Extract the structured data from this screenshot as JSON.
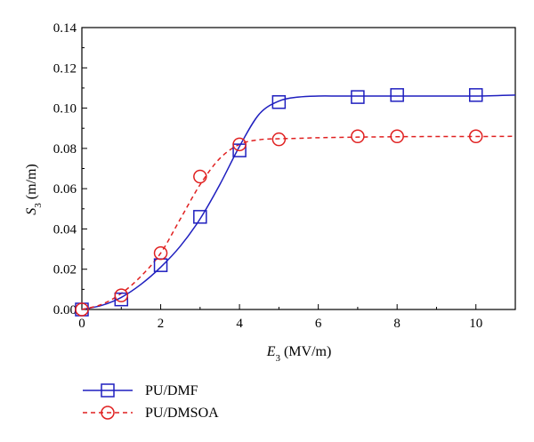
{
  "chart_data": {
    "type": "line",
    "title": "",
    "xlabel": {
      "symbol": "E",
      "subscript": "3",
      "unit": " (MV/m)"
    },
    "ylabel": {
      "symbol": "S",
      "subscript": "3",
      "unit": " (m/m)"
    },
    "xlim": [
      0,
      11
    ],
    "ylim": [
      0,
      0.14
    ],
    "xticks": [
      0,
      2,
      4,
      6,
      8,
      10
    ],
    "yticks": [
      0.0,
      0.02,
      0.04,
      0.06,
      0.08,
      0.1,
      0.12,
      0.14
    ],
    "ytick_labels": [
      "0.00",
      "0.02",
      "0.04",
      "0.06",
      "0.08",
      "0.10",
      "0.12",
      "0.14"
    ],
    "grid": false,
    "legend_position": "bottom-left, below plot",
    "series": [
      {
        "name": "PU/DMF",
        "color": "#1f1fbf",
        "marker": "square",
        "line_style": "solid",
        "x": [
          0,
          1,
          2,
          3,
          4,
          5,
          7,
          8,
          10
        ],
        "y": [
          0.0,
          0.005,
          0.022,
          0.046,
          0.079,
          0.103,
          0.1055,
          0.1065,
          0.1065
        ],
        "fit_curve": {
          "x": [
            0,
            0.5,
            1,
            1.5,
            2,
            2.5,
            3,
            3.5,
            4,
            4.5,
            5,
            5.5,
            6,
            6.5,
            7,
            8,
            9,
            10,
            11
          ],
          "y": [
            0.0,
            0.002,
            0.006,
            0.0125,
            0.021,
            0.0315,
            0.045,
            0.062,
            0.081,
            0.097,
            0.1035,
            0.1055,
            0.106,
            0.106,
            0.106,
            0.106,
            0.106,
            0.106,
            0.1065
          ]
        }
      },
      {
        "name": "PU/DMSOA",
        "color": "#e02020",
        "marker": "circle",
        "line_style": "dashed",
        "x": [
          0,
          1,
          2,
          3,
          4,
          5,
          7,
          8,
          10
        ],
        "y": [
          0.0,
          0.007,
          0.028,
          0.066,
          0.082,
          0.0845,
          0.086,
          0.086,
          0.086
        ],
        "fit_curve": {
          "x": [
            0,
            0.5,
            1,
            1.5,
            2,
            2.5,
            3,
            3.5,
            4,
            4.5,
            5,
            5.5,
            6,
            7,
            8,
            9,
            10,
            11
          ],
          "y": [
            0.0,
            0.0025,
            0.008,
            0.0165,
            0.028,
            0.045,
            0.062,
            0.075,
            0.082,
            0.0843,
            0.0848,
            0.085,
            0.0853,
            0.0856,
            0.0858,
            0.0859,
            0.0859,
            0.086
          ]
        }
      }
    ]
  }
}
